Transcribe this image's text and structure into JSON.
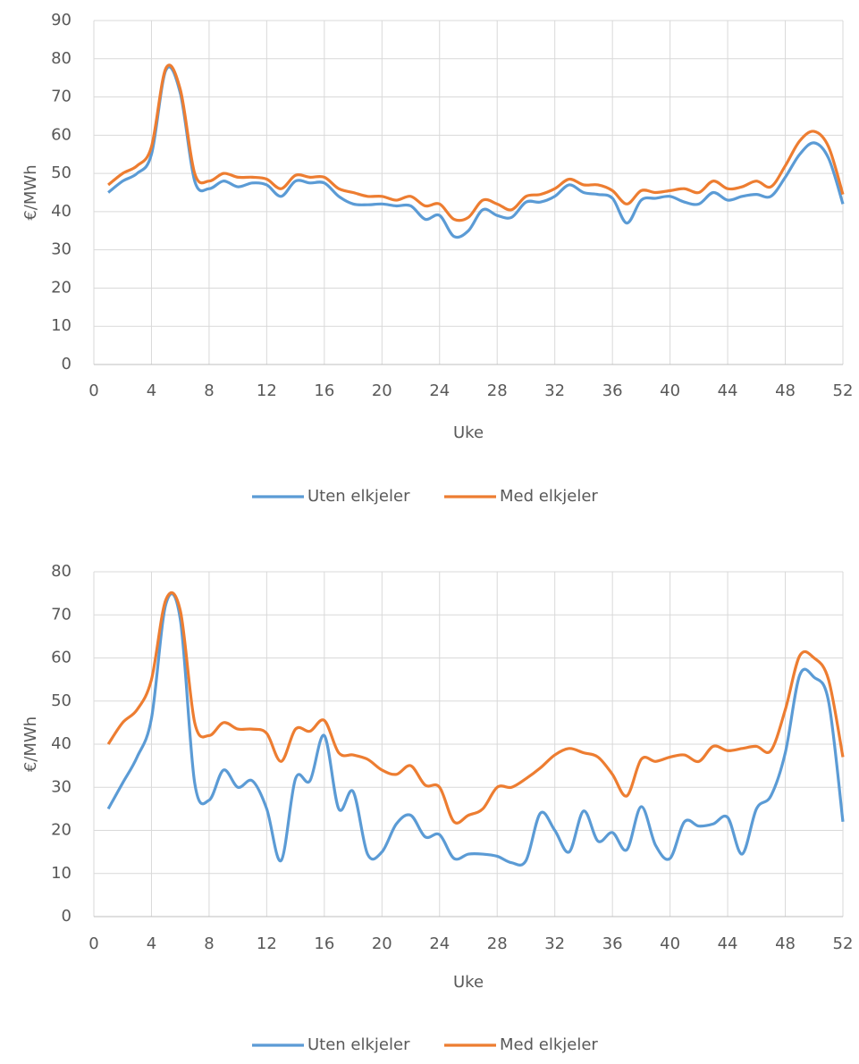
{
  "chart_data": [
    {
      "type": "line",
      "x_label": "Uke",
      "y_label": "€/MWh",
      "x": [
        1,
        2,
        3,
        4,
        5,
        6,
        7,
        8,
        9,
        10,
        11,
        12,
        13,
        14,
        15,
        16,
        17,
        18,
        19,
        20,
        21,
        22,
        23,
        24,
        25,
        26,
        27,
        28,
        29,
        30,
        31,
        32,
        33,
        34,
        35,
        36,
        37,
        38,
        39,
        40,
        41,
        42,
        43,
        44,
        45,
        46,
        47,
        48,
        49,
        50,
        51,
        52
      ],
      "xlim": [
        0,
        52
      ],
      "xticks": [
        0,
        4,
        8,
        12,
        16,
        20,
        24,
        28,
        32,
        36,
        40,
        44,
        48,
        52
      ],
      "ylim": [
        0,
        90
      ],
      "yticks": [
        0,
        10,
        20,
        30,
        40,
        50,
        60,
        70,
        80,
        90
      ],
      "grid": true,
      "legend": "bottom",
      "series": [
        {
          "name": "Uten elkjeler",
          "color": "#5b9bd5",
          "values": [
            45,
            48,
            50,
            55,
            77,
            71,
            48,
            46,
            48,
            46.5,
            47.5,
            47,
            44,
            48,
            47.5,
            47.5,
            44,
            42,
            41.8,
            42,
            41.5,
            41.5,
            38,
            39,
            33.5,
            35,
            40.5,
            39,
            38.5,
            42.5,
            42.5,
            44,
            47,
            45,
            44.5,
            43.5,
            37,
            43,
            43.5,
            44,
            42.5,
            42,
            45,
            43,
            44,
            44.5,
            44,
            49,
            55,
            58,
            54,
            42
          ]
        },
        {
          "name": "Med elkjeler",
          "color": "#ed7d31",
          "values": [
            47,
            50,
            52,
            57,
            77.5,
            72,
            50,
            48,
            50,
            49,
            49,
            48.5,
            46,
            49.5,
            49,
            49,
            46,
            45,
            44,
            44,
            43,
            44,
            41.5,
            42,
            38,
            38.5,
            43,
            42,
            40.5,
            44,
            44.5,
            46,
            48.5,
            47,
            47,
            45.5,
            42,
            45.5,
            45,
            45.5,
            46,
            45,
            48,
            46,
            46.5,
            48,
            46.5,
            52,
            58.5,
            61,
            57,
            44.5
          ]
        }
      ]
    },
    {
      "type": "line",
      "x_label": "Uke",
      "y_label": "€/MWh",
      "x": [
        1,
        2,
        3,
        4,
        5,
        6,
        7,
        8,
        9,
        10,
        11,
        12,
        13,
        14,
        15,
        16,
        17,
        18,
        19,
        20,
        21,
        22,
        23,
        24,
        25,
        26,
        27,
        28,
        29,
        30,
        31,
        32,
        33,
        34,
        35,
        36,
        37,
        38,
        39,
        40,
        41,
        42,
        43,
        44,
        45,
        46,
        47,
        48,
        49,
        50,
        51,
        52
      ],
      "xlim": [
        0,
        52
      ],
      "xticks": [
        0,
        4,
        8,
        12,
        16,
        20,
        24,
        28,
        32,
        36,
        40,
        44,
        48,
        52
      ],
      "ylim": [
        0,
        80
      ],
      "yticks": [
        0,
        10,
        20,
        30,
        40,
        50,
        60,
        70,
        80
      ],
      "grid": true,
      "legend": "bottom",
      "series": [
        {
          "name": "Uten elkjeler",
          "color": "#5b9bd5",
          "values": [
            25,
            31,
            37,
            46,
            72.5,
            69,
            31,
            27,
            34,
            30,
            31.5,
            25,
            13,
            32,
            31.5,
            42,
            25,
            29,
            14.5,
            15,
            21.5,
            23.5,
            18.5,
            19,
            13.5,
            14.5,
            14.5,
            14,
            12.5,
            13,
            24,
            20,
            15,
            24.5,
            17.5,
            19.5,
            15.5,
            25.5,
            16.5,
            13.5,
            22,
            21,
            21.5,
            23,
            14.5,
            25,
            28,
            38,
            56,
            55.5,
            50,
            22
          ]
        },
        {
          "name": "Med elkjeler",
          "color": "#ed7d31",
          "values": [
            40,
            45,
            48,
            55,
            73.5,
            71,
            45,
            42,
            45,
            43.5,
            43.5,
            42.5,
            36,
            43.5,
            43,
            45.5,
            38,
            37.5,
            36.5,
            34,
            33,
            35,
            30.5,
            30,
            22,
            23.5,
            25,
            30,
            30,
            32,
            34.5,
            37.5,
            39,
            38,
            37,
            33,
            28,
            36.5,
            36,
            37,
            37.5,
            36,
            39.5,
            38.5,
            39,
            39.5,
            38.5,
            48,
            60.5,
            60,
            55,
            37
          ]
        }
      ]
    }
  ]
}
